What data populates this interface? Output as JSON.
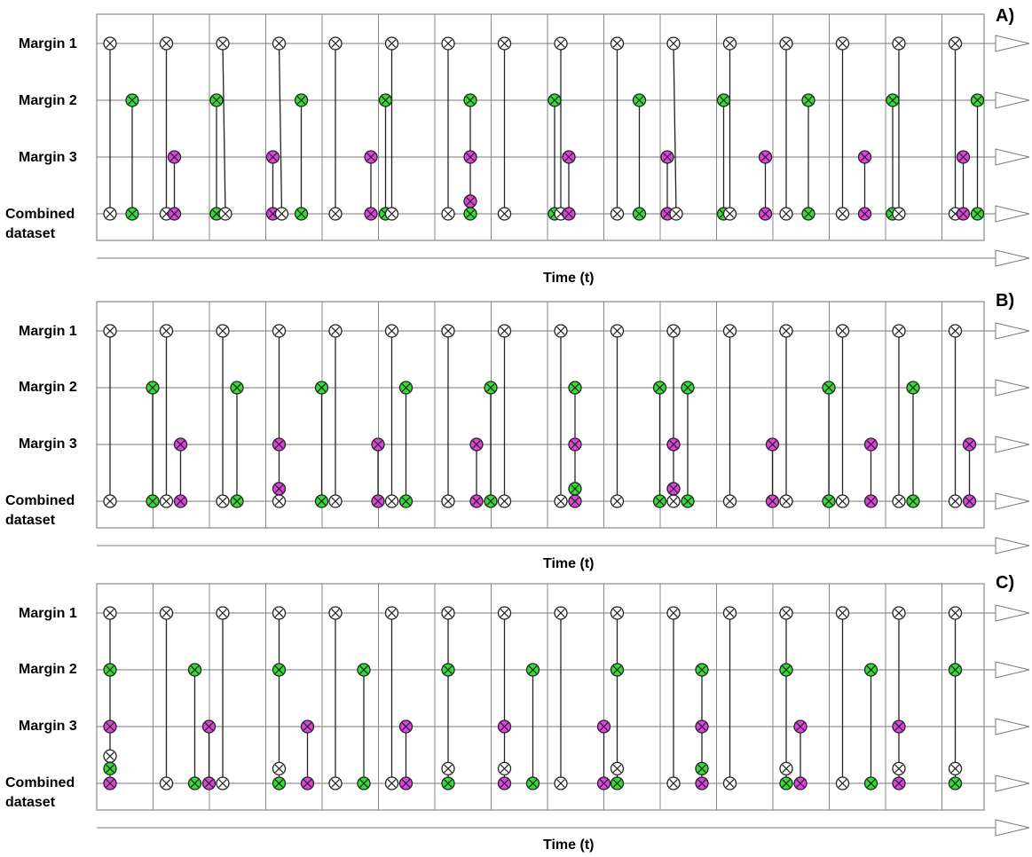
{
  "row_labels": [
    "Margin 1",
    "Margin 2",
    "Margin 3",
    "Combined",
    "dataset"
  ],
  "time_label": "Time (t)",
  "colors": {
    "margin1": "#ffffff",
    "margin2": "#33dd33",
    "margin3": "#dd44dd",
    "stroke": "#222222",
    "frame": "#888888"
  },
  "panels": [
    {
      "letter": "A)",
      "events": [
        {
          "col": 0,
          "m1": true,
          "comb": [
            {
              "c": "w",
              "x": 15
            }
          ]
        },
        {
          "col": 0,
          "m2": true,
          "x2": 40,
          "comb": [
            {
              "c": "g",
              "x": 40
            }
          ]
        },
        {
          "col": 1,
          "m1": true,
          "comb": [
            {
              "c": "w",
              "x": 15
            }
          ]
        },
        {
          "col": 1,
          "m3": true,
          "x3": 24,
          "comb": [
            {
              "c": "m",
              "x": 24
            }
          ]
        },
        {
          "col": 2,
          "m2": true,
          "x2": 8,
          "comb": [
            {
              "c": "g",
              "x": 8
            }
          ]
        },
        {
          "col": 2,
          "m1": true,
          "comb": [
            {
              "c": "w",
              "x": 18
            }
          ]
        },
        {
          "col": 3,
          "m3": true,
          "x3": 8,
          "comb": [
            {
              "c": "m",
              "x": 8
            }
          ]
        },
        {
          "col": 3,
          "m1": true,
          "comb": [
            {
              "c": "w",
              "x": 18
            }
          ]
        },
        {
          "col": 3,
          "m2": true,
          "x2": 40,
          "comb": [
            {
              "c": "g",
              "x": 40
            }
          ]
        },
        {
          "col": 4,
          "m1": true,
          "comb": [
            {
              "c": "w",
              "x": 15
            }
          ]
        },
        {
          "col": 4,
          "m3": true,
          "x3": 55,
          "comb": [
            {
              "c": "m",
              "x": 55
            }
          ]
        },
        {
          "col": 5,
          "m2": true,
          "x2": 8,
          "comb": [
            {
              "c": "g",
              "x": 8
            }
          ]
        },
        {
          "col": 5,
          "m1": true,
          "comb": [
            {
              "c": "w",
              "x": 15
            }
          ]
        },
        {
          "col": 6,
          "m1": true,
          "comb": [
            {
              "c": "w",
              "x": 15
            }
          ]
        },
        {
          "col": 6,
          "m2": true,
          "x2": 40,
          "m3": true,
          "x3": 40,
          "extra": [
            {
              "c": "m",
              "y": 0.78
            }
          ],
          "comb": [
            {
              "c": "g",
              "x": 40
            }
          ]
        },
        {
          "col": 7,
          "m1": true,
          "comb": [
            {
              "c": "w",
              "x": 15
            }
          ]
        },
        {
          "col": 8,
          "m2": true,
          "x2": 8,
          "comb": [
            {
              "c": "g",
              "x": 8
            }
          ]
        },
        {
          "col": 8,
          "m1": true,
          "comb": [
            {
              "c": "w",
              "x": 15
            }
          ]
        },
        {
          "col": 8,
          "m3": true,
          "x3": 24,
          "comb": [
            {
              "c": "m",
              "x": 24
            }
          ]
        },
        {
          "col": 9,
          "m1": true,
          "comb": [
            {
              "c": "w",
              "x": 15
            }
          ]
        },
        {
          "col": 9,
          "m2": true,
          "x2": 40,
          "comb": [
            {
              "c": "g",
              "x": 40
            }
          ]
        },
        {
          "col": 10,
          "m3": true,
          "x3": 8,
          "comb": [
            {
              "c": "m",
              "x": 8
            }
          ]
        },
        {
          "col": 10,
          "m1": true,
          "comb": [
            {
              "c": "w",
              "x": 18
            }
          ]
        },
        {
          "col": 11,
          "m2": true,
          "x2": 8,
          "comb": [
            {
              "c": "g",
              "x": 8
            }
          ]
        },
        {
          "col": 11,
          "m1": true,
          "comb": [
            {
              "c": "w",
              "x": 15
            }
          ]
        },
        {
          "col": 11,
          "m3": true,
          "x3": 55,
          "comb": [
            {
              "c": "m",
              "x": 55
            }
          ]
        },
        {
          "col": 12,
          "m1": true,
          "comb": [
            {
              "c": "w",
              "x": 15
            }
          ]
        },
        {
          "col": 12,
          "m2": true,
          "x2": 40,
          "comb": [
            {
              "c": "g",
              "x": 40
            }
          ]
        },
        {
          "col": 13,
          "m1": true,
          "comb": [
            {
              "c": "w",
              "x": 15
            }
          ]
        },
        {
          "col": 13,
          "m3": true,
          "x3": 40,
          "comb": [
            {
              "c": "m",
              "x": 40
            }
          ]
        },
        {
          "col": 14,
          "m2": true,
          "x2": 8,
          "comb": [
            {
              "c": "g",
              "x": 8
            }
          ]
        },
        {
          "col": 14,
          "m1": true,
          "comb": [
            {
              "c": "w",
              "x": 15
            }
          ]
        },
        {
          "col": 15,
          "m1": true,
          "comb": [
            {
              "c": "w",
              "x": 15
            }
          ]
        },
        {
          "col": 15,
          "m3": true,
          "x3": 24,
          "comb": [
            {
              "c": "m",
              "x": 24
            }
          ]
        },
        {
          "col": 15,
          "m2": true,
          "x2": 40,
          "comb": [
            {
              "c": "g",
              "x": 40
            }
          ]
        }
      ]
    },
    {
      "letter": "B)",
      "events": [
        {
          "col": 0,
          "m1": true,
          "comb": [
            {
              "c": "w",
              "x": 15
            }
          ]
        },
        {
          "col": 0,
          "m2": true,
          "x2": 63,
          "comb": [
            {
              "c": "g",
              "x": 63
            }
          ]
        },
        {
          "col": 1,
          "m1": true,
          "comb": [
            {
              "c": "w",
              "x": 15
            }
          ]
        },
        {
          "col": 1,
          "m3": true,
          "x3": 31,
          "comb": [
            {
              "c": "m",
              "x": 31
            }
          ]
        },
        {
          "col": 2,
          "m1": true,
          "comb": [
            {
              "c": "w",
              "x": 15
            }
          ]
        },
        {
          "col": 2,
          "m2": true,
          "x2": 31,
          "comb": [
            {
              "c": "g",
              "x": 31
            }
          ]
        },
        {
          "col": 3,
          "m1": true,
          "m3": true,
          "x3": 15,
          "extra": [
            {
              "c": "m",
              "y": 0.78
            }
          ],
          "comb": [
            {
              "c": "w",
              "x": 15
            }
          ]
        },
        {
          "col": 3,
          "m2": true,
          "x2": 63,
          "comb": [
            {
              "c": "g",
              "x": 63
            }
          ]
        },
        {
          "col": 4,
          "m1": true,
          "comb": [
            {
              "c": "w",
              "x": 15
            }
          ]
        },
        {
          "col": 4,
          "m3": true,
          "x3": 63,
          "comb": [
            {
              "c": "m",
              "x": 63
            }
          ]
        },
        {
          "col": 5,
          "m1": true,
          "comb": [
            {
              "c": "w",
              "x": 15
            }
          ]
        },
        {
          "col": 5,
          "m2": true,
          "x2": 31,
          "comb": [
            {
              "c": "g",
              "x": 31
            }
          ]
        },
        {
          "col": 6,
          "m1": true,
          "comb": [
            {
              "c": "w",
              "x": 15
            }
          ]
        },
        {
          "col": 6,
          "m3": true,
          "x3": 47,
          "comb": [
            {
              "c": "m",
              "x": 47
            }
          ]
        },
        {
          "col": 6,
          "m2": true,
          "x2": 63,
          "comb": [
            {
              "c": "g",
              "x": 63
            }
          ]
        },
        {
          "col": 7,
          "m1": true,
          "comb": [
            {
              "c": "w",
              "x": 15
            }
          ]
        },
        {
          "col": 8,
          "m1": true,
          "comb": [
            {
              "c": "w",
              "x": 15
            }
          ]
        },
        {
          "col": 8,
          "m2": true,
          "x2": 31,
          "m3": true,
          "x3": 31,
          "extra": [
            {
              "c": "g",
              "y": 0.78
            }
          ],
          "comb": [
            {
              "c": "m",
              "x": 31
            }
          ]
        },
        {
          "col": 9,
          "m1": true,
          "comb": [
            {
              "c": "w",
              "x": 15
            }
          ]
        },
        {
          "col": 9,
          "m2": true,
          "x2": 63,
          "comb": [
            {
              "c": "g",
              "x": 63
            }
          ]
        },
        {
          "col": 10,
          "m1": true,
          "m3": true,
          "x3": 15,
          "extra": [
            {
              "c": "m",
              "y": 0.78
            }
          ],
          "comb": [
            {
              "c": "w",
              "x": 15
            }
          ]
        },
        {
          "col": 10,
          "m2": true,
          "x2": 31,
          "comb": [
            {
              "c": "g",
              "x": 31
            }
          ]
        },
        {
          "col": 11,
          "m1": true,
          "comb": [
            {
              "c": "w",
              "x": 15
            }
          ]
        },
        {
          "col": 11,
          "m3": true,
          "x3": 63,
          "comb": [
            {
              "c": "m",
              "x": 63
            }
          ]
        },
        {
          "col": 12,
          "m1": true,
          "comb": [
            {
              "c": "w",
              "x": 15
            }
          ]
        },
        {
          "col": 12,
          "m2": true,
          "x2": 63,
          "comb": [
            {
              "c": "g",
              "x": 63
            }
          ]
        },
        {
          "col": 13,
          "m1": true,
          "comb": [
            {
              "c": "w",
              "x": 15
            }
          ]
        },
        {
          "col": 13,
          "m3": true,
          "x3": 47,
          "comb": [
            {
              "c": "m",
              "x": 47
            }
          ]
        },
        {
          "col": 14,
          "m1": true,
          "comb": [
            {
              "c": "w",
              "x": 15
            }
          ]
        },
        {
          "col": 14,
          "m2": true,
          "x2": 31,
          "comb": [
            {
              "c": "g",
              "x": 31
            }
          ]
        },
        {
          "col": 15,
          "m1": true,
          "comb": [
            {
              "c": "w",
              "x": 15
            }
          ]
        },
        {
          "col": 15,
          "m3": true,
          "x3": 31,
          "comb": [
            {
              "c": "m",
              "x": 31
            }
          ]
        }
      ]
    },
    {
      "letter": "C)",
      "events": [
        {
          "col": 0,
          "m1": true,
          "m2": true,
          "x2": 15,
          "m3": true,
          "x3": 15,
          "extra": [
            {
              "c": "w",
              "y": 0.52
            },
            {
              "c": "g",
              "y": 0.74
            }
          ],
          "comb": [
            {
              "c": "m",
              "x": 15
            }
          ]
        },
        {
          "col": 1,
          "m1": true,
          "comb": [
            {
              "c": "w",
              "x": 15
            }
          ]
        },
        {
          "col": 1,
          "m2": true,
          "x2": 47,
          "comb": [
            {
              "c": "g",
              "x": 47
            }
          ]
        },
        {
          "col": 1,
          "m3": true,
          "x3": 63,
          "comb": [
            {
              "c": "m",
              "x": 63
            }
          ]
        },
        {
          "col": 2,
          "m1": true,
          "comb": [
            {
              "c": "w",
              "x": 15
            }
          ]
        },
        {
          "col": 3,
          "m1": true,
          "m2": true,
          "x2": 15,
          "extra": [
            {
              "c": "w",
              "y": 0.74
            }
          ],
          "comb": [
            {
              "c": "g",
              "x": 15
            }
          ]
        },
        {
          "col": 3,
          "m3": true,
          "x3": 47,
          "comb": [
            {
              "c": "m",
              "x": 47
            }
          ]
        },
        {
          "col": 4,
          "m1": true,
          "comb": [
            {
              "c": "w",
              "x": 15
            }
          ]
        },
        {
          "col": 4,
          "m2": true,
          "x2": 47,
          "comb": [
            {
              "c": "g",
              "x": 47
            }
          ]
        },
        {
          "col": 5,
          "m1": true,
          "comb": [
            {
              "c": "w",
              "x": 15
            }
          ]
        },
        {
          "col": 5,
          "m3": true,
          "x3": 31,
          "comb": [
            {
              "c": "m",
              "x": 31
            }
          ]
        },
        {
          "col": 6,
          "m1": true,
          "m2": true,
          "x2": 15,
          "extra": [
            {
              "c": "w",
              "y": 0.74
            }
          ],
          "comb": [
            {
              "c": "g",
              "x": 15
            }
          ]
        },
        {
          "col": 7,
          "m1": true,
          "m3": true,
          "x3": 15,
          "extra": [
            {
              "c": "w",
              "y": 0.74
            }
          ],
          "comb": [
            {
              "c": "m",
              "x": 15
            }
          ]
        },
        {
          "col": 7,
          "m2": true,
          "x2": 47,
          "comb": [
            {
              "c": "g",
              "x": 47
            }
          ]
        },
        {
          "col": 8,
          "m1": true,
          "comb": [
            {
              "c": "w",
              "x": 15
            }
          ]
        },
        {
          "col": 9,
          "m3": true,
          "x3": 0,
          "comb": [
            {
              "c": "m",
              "x": 0
            }
          ]
        },
        {
          "col": 9,
          "m1": true,
          "m2": true,
          "x2": 15,
          "extra": [
            {
              "c": "w",
              "y": 0.74
            }
          ],
          "comb": [
            {
              "c": "g",
              "x": 15
            }
          ]
        },
        {
          "col": 10,
          "m1": true,
          "comb": [
            {
              "c": "w",
              "x": 15
            }
          ]
        },
        {
          "col": 10,
          "m2": true,
          "x2": 47,
          "m3": true,
          "x3": 47,
          "extra": [
            {
              "c": "g",
              "y": 0.74
            }
          ],
          "comb": [
            {
              "c": "m",
              "x": 47
            }
          ]
        },
        {
          "col": 11,
          "m1": true,
          "comb": [
            {
              "c": "w",
              "x": 15
            }
          ]
        },
        {
          "col": 12,
          "m1": true,
          "m2": true,
          "x2": 15,
          "extra": [
            {
              "c": "w",
              "y": 0.74
            }
          ],
          "comb": [
            {
              "c": "g",
              "x": 15
            }
          ]
        },
        {
          "col": 12,
          "m3": true,
          "x3": 31,
          "comb": [
            {
              "c": "m",
              "x": 31
            }
          ]
        },
        {
          "col": 13,
          "m1": true,
          "comb": [
            {
              "c": "w",
              "x": 15
            }
          ]
        },
        {
          "col": 13,
          "m2": true,
          "x2": 47,
          "comb": [
            {
              "c": "g",
              "x": 47
            }
          ]
        },
        {
          "col": 14,
          "m1": true,
          "m3": true,
          "x3": 15,
          "extra": [
            {
              "c": "w",
              "y": 0.74
            }
          ],
          "comb": [
            {
              "c": "m",
              "x": 15
            }
          ]
        },
        {
          "col": 15,
          "m1": true,
          "m2": true,
          "x2": 15,
          "extra": [
            {
              "c": "w",
              "y": 0.74
            }
          ],
          "comb": [
            {
              "c": "g",
              "x": 15
            }
          ]
        }
      ]
    }
  ]
}
